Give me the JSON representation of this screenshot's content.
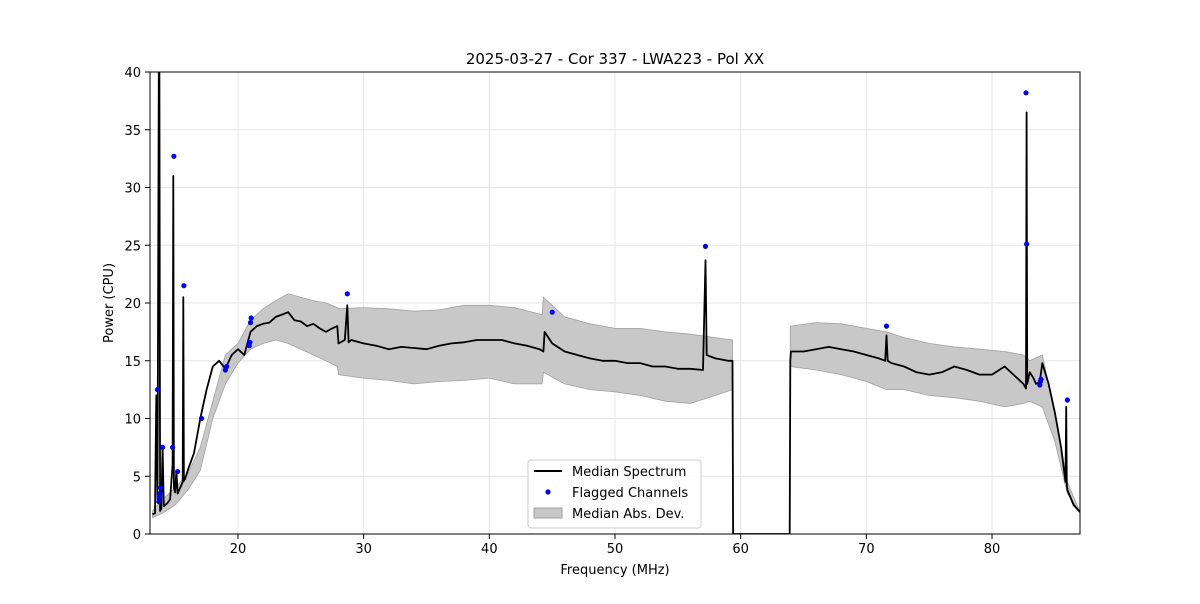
{
  "chart_data": {
    "type": "line",
    "title": "2025-03-27 - Cor 337 - LWA223 - Pol XX",
    "xlabel": "Frequency (MHz)",
    "ylabel": "Power (CPU)",
    "xlim": [
      13.0,
      87.0
    ],
    "ylim": [
      0,
      40
    ],
    "xticks": [
      20,
      30,
      40,
      50,
      60,
      70,
      80
    ],
    "yticks": [
      0,
      5,
      10,
      15,
      20,
      25,
      30,
      35,
      40
    ],
    "grid": true,
    "legend": {
      "position": "lower-center",
      "entries": [
        "Median Spectrum",
        "Flagged Channels",
        "Median Abs. Dev."
      ]
    },
    "colors": {
      "median": "#000000",
      "flagged": "#0000ff",
      "mad_fill": "#c8c8c8",
      "mad_edge": "#a0a0a0",
      "grid": "#e6e6e6"
    },
    "series": [
      {
        "name": "Median Spectrum",
        "x": [
          13.2,
          13.4,
          13.5,
          13.6,
          13.7,
          13.75,
          13.8,
          13.9,
          14.0,
          14.1,
          14.2,
          14.4,
          14.6,
          14.8,
          14.85,
          14.9,
          15.0,
          15.1,
          15.2,
          15.4,
          15.6,
          15.65,
          15.7,
          15.8,
          16.0,
          16.5,
          17.0,
          17.5,
          18.0,
          18.5,
          19.0,
          19.5,
          20.0,
          20.5,
          21.0,
          21.5,
          22.0,
          22.5,
          23.0,
          23.5,
          24.0,
          24.5,
          25.0,
          25.5,
          26.0,
          26.5,
          27.0,
          27.5,
          27.9,
          28.0,
          28.5,
          28.7,
          28.8,
          29.0,
          30.0,
          31.0,
          32.0,
          33.0,
          34.0,
          35.0,
          36.0,
          37.0,
          38.0,
          39.0,
          40.0,
          41.0,
          42.0,
          43.0,
          44.0,
          44.3,
          44.4,
          45.0,
          46.0,
          47.0,
          48.0,
          49.0,
          50.0,
          51.0,
          52.0,
          53.0,
          54.0,
          55.0,
          56.0,
          57.0,
          57.2,
          57.3,
          57.5,
          58.0,
          59.0,
          59.35,
          59.4,
          63.9,
          63.95,
          64.0,
          65.0,
          66.0,
          67.0,
          68.0,
          69.0,
          70.0,
          71.0,
          71.5,
          71.6,
          71.7,
          72.0,
          73.0,
          74.0,
          75.0,
          76.0,
          77.0,
          78.0,
          79.0,
          80.0,
          81.0,
          82.0,
          82.5,
          82.7,
          82.75,
          82.8,
          83.0,
          83.3,
          83.5,
          83.8,
          84.0,
          84.5,
          85.0,
          85.5,
          85.85,
          85.9,
          85.95,
          86.0,
          86.5,
          87.0
        ],
        "values": [
          1.7,
          1.8,
          12.0,
          3.0,
          40.0,
          40.0,
          2.0,
          2.2,
          7.5,
          2.4,
          2.5,
          2.7,
          3.0,
          6.0,
          31.0,
          4.0,
          3.6,
          5.5,
          3.5,
          4.0,
          4.5,
          20.5,
          4.6,
          4.8,
          5.5,
          7.0,
          10.0,
          12.5,
          14.5,
          15.0,
          14.3,
          15.5,
          16.0,
          15.5,
          17.5,
          18.0,
          18.2,
          18.3,
          18.8,
          19.0,
          19.2,
          18.5,
          18.4,
          18.0,
          18.2,
          17.8,
          17.5,
          17.8,
          18.0,
          16.5,
          16.8,
          19.8,
          16.6,
          16.8,
          16.5,
          16.3,
          16.0,
          16.2,
          16.1,
          16.0,
          16.3,
          16.5,
          16.6,
          16.8,
          16.8,
          16.8,
          16.5,
          16.3,
          16.0,
          15.8,
          17.5,
          16.5,
          15.8,
          15.5,
          15.2,
          15.0,
          15.0,
          14.8,
          14.8,
          14.5,
          14.5,
          14.3,
          14.3,
          14.2,
          23.7,
          15.5,
          15.4,
          15.2,
          15.0,
          15.0,
          0.0,
          0.0,
          15.0,
          15.8,
          15.8,
          16.0,
          16.2,
          16.0,
          15.8,
          15.5,
          15.2,
          15.0,
          17.2,
          15.0,
          14.8,
          14.5,
          14.0,
          13.8,
          14.0,
          14.5,
          14.2,
          13.8,
          13.8,
          14.5,
          13.5,
          13.0,
          12.6,
          36.5,
          13.0,
          14.0,
          13.5,
          13.0,
          13.2,
          14.8,
          13.0,
          10.5,
          7.5,
          4.5,
          11.0,
          4.3,
          3.8,
          2.5,
          1.9
        ]
      },
      {
        "name": "Flagged Channels",
        "x": [
          13.6,
          13.7,
          13.75,
          13.8,
          13.85,
          14.0,
          14.8,
          14.9,
          15.2,
          15.7,
          17.1,
          19.0,
          19.1,
          20.9,
          20.95,
          21.0,
          21.05,
          28.7,
          45.0,
          57.2,
          71.6,
          82.7,
          82.75,
          83.8,
          83.85,
          83.9,
          86.0
        ],
        "values": [
          12.5,
          2.8,
          3.2,
          3.5,
          4.0,
          7.5,
          7.5,
          32.7,
          5.4,
          21.5,
          10.0,
          14.2,
          14.5,
          16.3,
          16.6,
          18.3,
          18.7,
          20.8,
          19.2,
          24.9,
          18.0,
          38.2,
          25.1,
          12.9,
          13.2,
          13.4,
          11.6
        ]
      },
      {
        "name": "Median Abs. Dev.",
        "x": [
          13.2,
          14.0,
          15.0,
          16.0,
          17.0,
          18.0,
          19.0,
          20.0,
          21.0,
          22.0,
          23.0,
          24.0,
          25.0,
          26.0,
          27.0,
          27.9,
          28.0,
          30.0,
          32.0,
          34.0,
          36.0,
          38.0,
          40.0,
          42.0,
          44.2,
          44.3,
          46.0,
          48.0,
          50.0,
          52.0,
          54.0,
          56.0,
          58.0,
          59.35,
          63.95,
          66.0,
          68.0,
          70.0,
          71.6,
          73.0,
          75.0,
          77.0,
          79.0,
          81.0,
          82.5,
          83.0,
          84.0,
          85.0,
          86.0,
          87.0
        ],
        "upper": [
          2.0,
          3.0,
          4.0,
          5.2,
          7.5,
          11.5,
          15.5,
          16.5,
          18.5,
          19.5,
          20.2,
          20.8,
          20.5,
          20.2,
          20.0,
          19.6,
          19.5,
          19.6,
          19.5,
          19.3,
          19.4,
          19.8,
          19.8,
          19.6,
          19.0,
          20.5,
          18.8,
          18.2,
          17.8,
          17.8,
          17.5,
          17.3,
          17.0,
          16.8,
          18.0,
          18.3,
          18.2,
          17.8,
          17.5,
          17.0,
          16.5,
          16.2,
          16.0,
          15.8,
          15.5,
          15.0,
          15.5,
          10.5,
          4.5,
          1.9
        ],
        "lower": [
          1.4,
          1.8,
          2.5,
          3.8,
          5.5,
          10.0,
          13.0,
          14.8,
          16.0,
          16.5,
          16.8,
          16.5,
          16.0,
          15.5,
          15.0,
          14.5,
          13.8,
          13.5,
          13.3,
          13.0,
          13.2,
          13.3,
          13.5,
          13.0,
          13.0,
          14.0,
          13.0,
          12.5,
          12.3,
          12.0,
          11.5,
          11.3,
          12.0,
          12.5,
          14.5,
          14.2,
          13.8,
          13.2,
          12.5,
          12.5,
          12.0,
          11.8,
          11.5,
          11.0,
          11.3,
          11.5,
          11.0,
          8.0,
          3.5,
          1.9
        ]
      }
    ]
  }
}
